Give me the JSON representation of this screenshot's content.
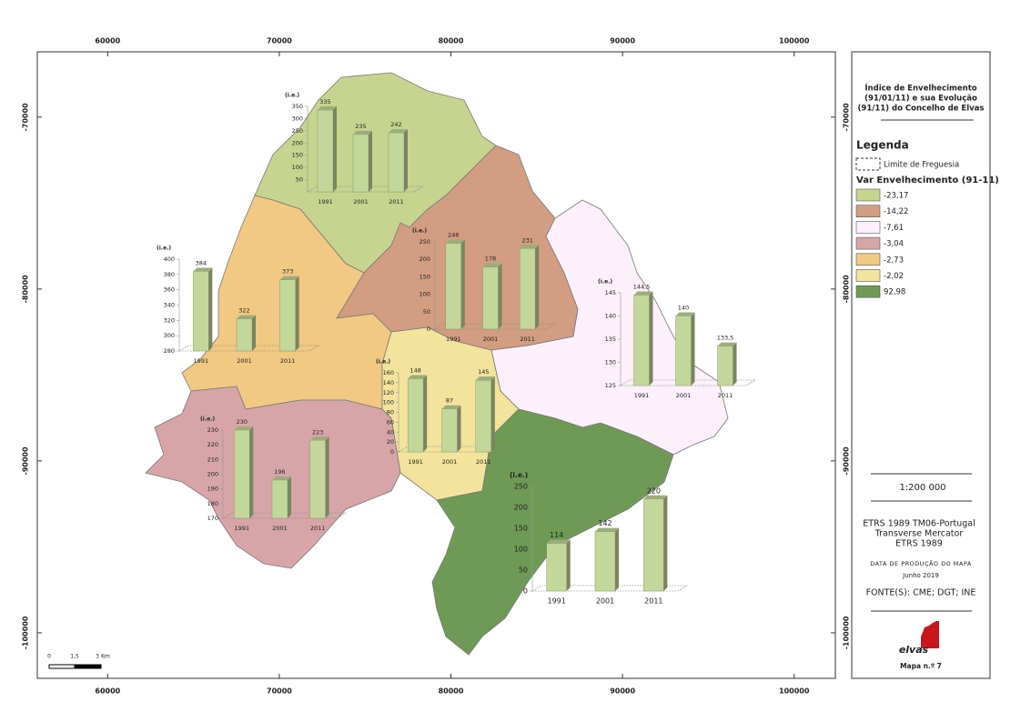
{
  "map": {
    "frame_coordinates": {
      "xlim": [
        55900,
        102400
      ],
      "xticks": [
        60000,
        70000,
        80000,
        90000,
        100000
      ],
      "ylim": [
        -66200,
        -102650
      ],
      "yticks": [
        -70000,
        -80000,
        -90000,
        -100000
      ]
    },
    "charts": [
      {
        "type": "bar",
        "unit_label": "(i.e.)",
        "categories": [
          "1991",
          "2001",
          "2011"
        ],
        "values": [
          335,
          235,
          242
        ],
        "ylim": [
          0,
          350
        ],
        "yticks": [
          50,
          100,
          150,
          200,
          250,
          300,
          350
        ],
        "color": "#c4d79b"
      },
      {
        "type": "bar",
        "unit_label": "(i.e.)",
        "categories": [
          "1991",
          "2001",
          "2011"
        ],
        "values": [
          246,
          178,
          231
        ],
        "ylim": [
          0,
          250
        ],
        "yticks": [
          0,
          50,
          100,
          150,
          200,
          250
        ],
        "color": "#c4d79b"
      },
      {
        "type": "bar",
        "unit_label": "(i.e.)",
        "categories": [
          "1991",
          "2001",
          "2011"
        ],
        "values": [
          384,
          322,
          373
        ],
        "ylim": [
          280,
          400
        ],
        "yticks": [
          280,
          300,
          320,
          340,
          360,
          380,
          400
        ],
        "color": "#c4d79b"
      },
      {
        "type": "bar",
        "unit_label": "(i.e.)",
        "categories": [
          "1991",
          "2001",
          "2011"
        ],
        "values": [
          144.5,
          140,
          133.5
        ],
        "value_labels": [
          "144,5",
          "140",
          "133,5"
        ],
        "ylim": [
          125,
          145
        ],
        "yticks": [
          125,
          130,
          135,
          140,
          145
        ],
        "color": "#c4d79b"
      },
      {
        "type": "bar",
        "unit_label": "(i.e.)",
        "categories": [
          "1991",
          "2001",
          "2011"
        ],
        "values": [
          148,
          87,
          145
        ],
        "ylim": [
          0,
          160
        ],
        "yticks": [
          0,
          20,
          40,
          60,
          80,
          100,
          120,
          140,
          160
        ],
        "color": "#c4d79b"
      },
      {
        "type": "bar",
        "unit_label": "(i.e.)",
        "categories": [
          "1991",
          "2001",
          "2011"
        ],
        "values": [
          230,
          196,
          223
        ],
        "ylim": [
          170,
          230
        ],
        "yticks": [
          170,
          180,
          190,
          200,
          210,
          220,
          230
        ],
        "color": "#c4d79b"
      },
      {
        "type": "bar",
        "unit_label": "(i.e.)",
        "categories": [
          "1991",
          "2001",
          "2011"
        ],
        "values": [
          114,
          142,
          220
        ],
        "ylim": [
          0,
          250
        ],
        "yticks": [
          0,
          50,
          100,
          150,
          200,
          250
        ],
        "color": "#c4d79b"
      }
    ],
    "scale_bar": {
      "labels": [
        "0",
        "1,5",
        "3 Km"
      ]
    }
  },
  "panel": {
    "title_lines": [
      "Índice de Envelhecimento",
      "(91/01/11) e sua Evolução",
      "(91/11) do Concelho de Elvas"
    ],
    "legend_title": "Legenda",
    "boundary_label": "Limite de Freguesia",
    "classes_title": "Var Envelhecimento (91-11)",
    "classes": [
      {
        "label": "-23,17",
        "color": "#c6d48f"
      },
      {
        "label": "-14,22",
        "color": "#d29d80"
      },
      {
        "label": "-7,61",
        "color": "#fcf0fb"
      },
      {
        "label": "-3,04",
        "color": "#d7a5a8"
      },
      {
        "label": "-2,73",
        "color": "#f1c982"
      },
      {
        "label": "-2,02",
        "color": "#f3e39c"
      },
      {
        "label": "92,98",
        "color": "#6e9a55"
      }
    ],
    "scale": "1:200 000",
    "projection": [
      "ETRS 1989 TM06-Portugal",
      "Transverse Mercator",
      "ETRS 1989"
    ],
    "production_date_label": "DATA DE PRODUÇÃO DO MAPA",
    "production_date": "Junho 2019",
    "sources": "FONTE(S): CME; DGT; INE",
    "logo": "elvas",
    "map_number": "Mapa n.º 7"
  }
}
